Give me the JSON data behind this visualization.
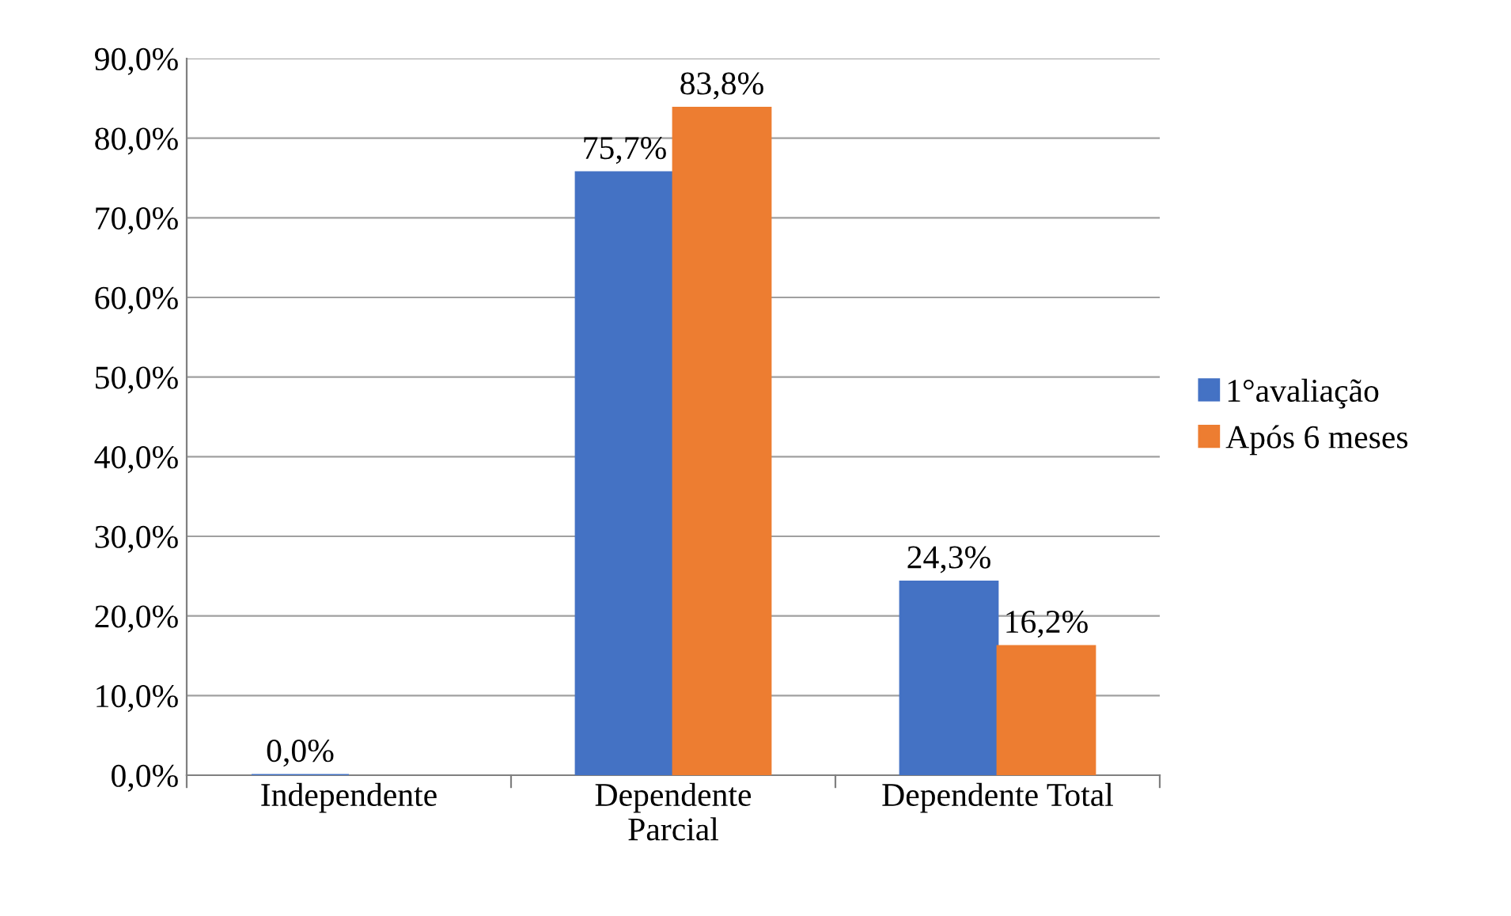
{
  "chart_data": {
    "type": "bar",
    "categories": [
      "Independente",
      "Dependente\nParcial",
      "Dependente Total"
    ],
    "series": [
      {
        "name": "1°avaliação",
        "color": "#4472c4",
        "values": [
          0.0,
          75.7,
          24.3
        ],
        "value_labels": [
          "0,0%",
          "75,7%",
          "24,3%"
        ]
      },
      {
        "name": "Após 6 meses",
        "color": "#ed7d31",
        "values": [
          null,
          83.8,
          16.2
        ],
        "value_labels": [
          null,
          "83,8%",
          "16,2%"
        ]
      }
    ],
    "ylim": [
      0,
      90
    ],
    "yticks": [
      {
        "value": 0,
        "label": "0,0%"
      },
      {
        "value": 10,
        "label": "10,0%"
      },
      {
        "value": 20,
        "label": "20,0%"
      },
      {
        "value": 30,
        "label": "30,0%"
      },
      {
        "value": 40,
        "label": "40,0%"
      },
      {
        "value": 50,
        "label": "50,0%"
      },
      {
        "value": 60,
        "label": "60,0%"
      },
      {
        "value": 70,
        "label": "70,0%"
      },
      {
        "value": 80,
        "label": "80,0%"
      },
      {
        "value": 90,
        "label": "90,0%"
      }
    ],
    "grid": "y",
    "legend": "right"
  }
}
